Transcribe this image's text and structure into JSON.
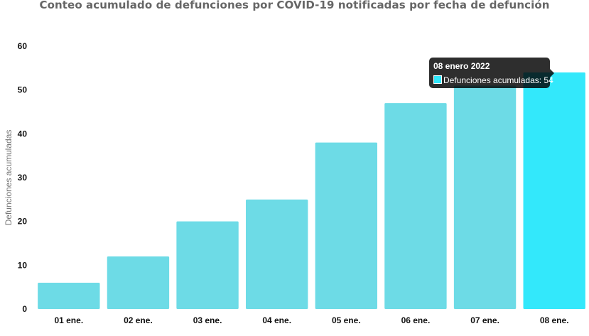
{
  "chart_data": {
    "type": "bar",
    "title": "Conteo acumulado de defunciones por COVID-19 notificadas por fecha de defunción",
    "xlabel": "",
    "ylabel": "Defunciones acumuladas",
    "categories": [
      "01 ene.",
      "02 ene.",
      "03 ene.",
      "04 ene.",
      "05 ene.",
      "06 ene.",
      "07 ene.",
      "08 ene."
    ],
    "series": [
      {
        "name": "Defunciones acumuladas",
        "values": [
          6,
          12,
          20,
          25,
          38,
          47,
          51,
          54
        ]
      }
    ],
    "ylim": [
      0,
      60
    ],
    "yticks": [
      0,
      10,
      20,
      30,
      40,
      50,
      60
    ],
    "grid": false,
    "legend": "none",
    "colors": {
      "bar": "#6ddbe6",
      "bar_highlight": "#33e8fb"
    },
    "highlighted_index": 7
  },
  "tooltip": {
    "title": "08 enero 2022",
    "label": "Defunciones acumuladas: 54"
  }
}
